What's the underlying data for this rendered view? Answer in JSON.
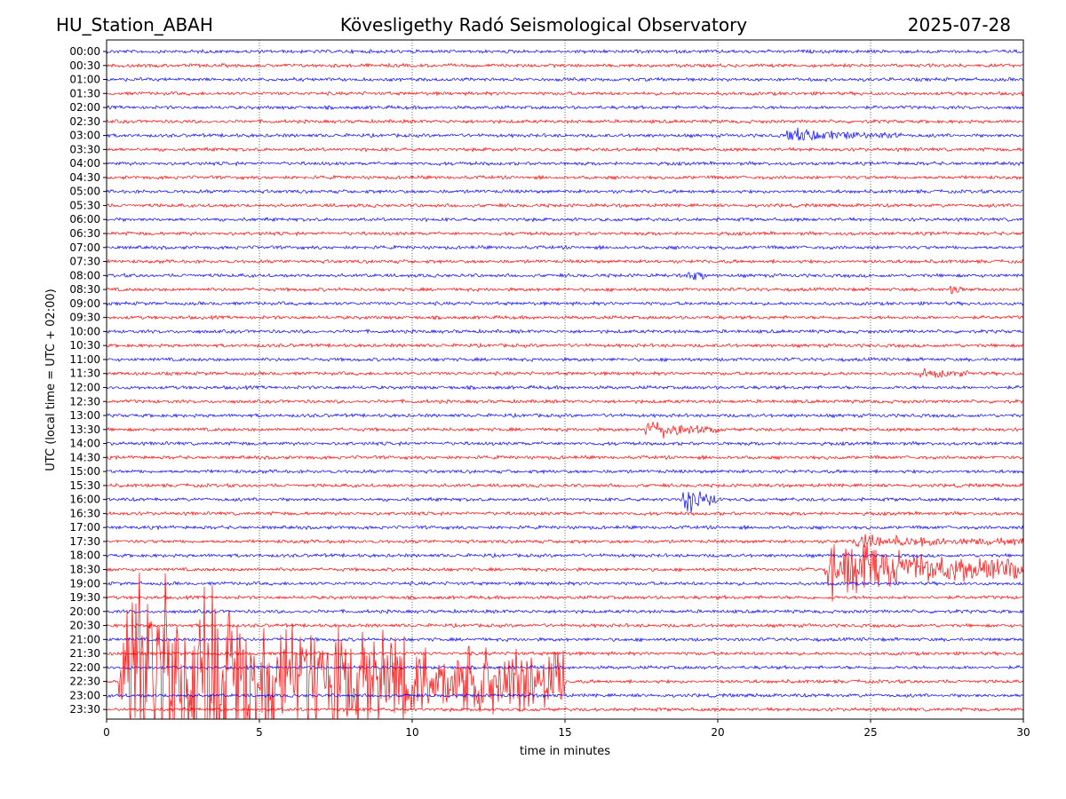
{
  "header": {
    "station": "HU_Station_ABAH",
    "observatory": "Kövesligethy Radó Seismological Observatory",
    "date": "2025-07-28"
  },
  "chart_data": {
    "type": "line",
    "title": "Kövesligethy Radó Seismological Observatory",
    "xlabel": "time in minutes",
    "ylabel": "UTC (local time = UTC + 02:00)",
    "xlim": [
      0,
      30
    ],
    "x_ticks": [
      "0",
      "5",
      "10",
      "15",
      "20",
      "25",
      "30"
    ],
    "grid": "vertical dotted lines at each x tick",
    "row_interval_minutes": 30,
    "row_labels": [
      "00:00",
      "00:30",
      "01:00",
      "01:30",
      "02:00",
      "02:30",
      "03:00",
      "03:30",
      "04:00",
      "04:30",
      "05:00",
      "05:30",
      "06:00",
      "06:30",
      "07:00",
      "07:30",
      "08:00",
      "08:30",
      "09:00",
      "09:30",
      "10:00",
      "10:30",
      "11:00",
      "11:30",
      "12:00",
      "12:30",
      "13:00",
      "13:30",
      "14:00",
      "14:30",
      "15:00",
      "15:30",
      "16:00",
      "16:30",
      "17:00",
      "17:30",
      "18:00",
      "18:30",
      "19:00",
      "19:30",
      "20:00",
      "20:30",
      "21:00",
      "21:30",
      "22:00",
      "22:30",
      "23:00",
      "23:30"
    ],
    "colors": {
      "even_rows": "#0000ff",
      "odd_rows": "#ff0000"
    },
    "events": [
      {
        "row": "03:00",
        "start_min": 22.2,
        "end_min": 26.0,
        "amplitude": 0.35
      },
      {
        "row": "08:00",
        "start_min": 19.0,
        "end_min": 19.6,
        "amplitude": 0.6
      },
      {
        "row": "08:30",
        "start_min": 27.6,
        "end_min": 28.0,
        "amplitude": 0.35
      },
      {
        "row": "11:30",
        "start_min": 26.6,
        "end_min": 28.3,
        "amplitude": 0.3
      },
      {
        "row": "13:30",
        "start_min": 17.6,
        "end_min": 20.0,
        "amplitude": 0.55
      },
      {
        "row": "16:00",
        "start_min": 18.8,
        "end_min": 20.0,
        "amplitude": 0.9
      },
      {
        "row": "17:30",
        "start_min": 24.4,
        "end_min": 30.0,
        "amplitude": 0.35
      },
      {
        "row": "18:30",
        "start_min": 23.5,
        "end_min": 30.0,
        "amplitude": 1.8
      },
      {
        "row": "22:30",
        "start_min": 0.4,
        "end_min": 15.0,
        "amplitude": 6.5
      }
    ]
  }
}
